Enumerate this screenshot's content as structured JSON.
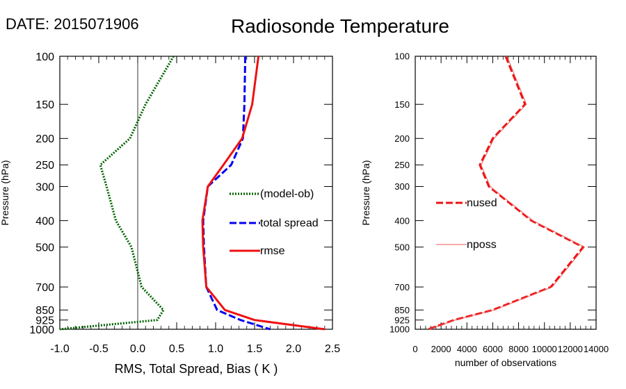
{
  "header": {
    "date_label": "DATE: 2015071906",
    "title": "Radiosonde Temperature"
  },
  "chart_data": [
    {
      "type": "line",
      "ylabel": "Pressure (hPa)",
      "xlabel": "RMS, Total Spread, Bias ( K )",
      "y_scale": "log",
      "y_reversed": true,
      "ylim": [
        1000,
        100
      ],
      "xlim": [
        -1.0,
        2.5
      ],
      "x_ticks": [
        "-1.0",
        "-0.5",
        "0.0",
        "0.5",
        "1.0",
        "1.5",
        "2.0",
        "2.5"
      ],
      "y_ticks": [
        "100",
        "150",
        "200",
        "250",
        "300",
        "400",
        "500",
        "700",
        "850",
        "925",
        "1000"
      ],
      "legend_position": "right-middle",
      "series": [
        {
          "name": "(model-ob)",
          "color": "#006400",
          "style": "dotted",
          "x": [
            0.46,
            0.1,
            -0.1,
            -0.48,
            -0.4,
            -0.28,
            -0.08,
            0.05,
            0.33,
            0.25,
            -1.0
          ],
          "y": [
            100,
            150,
            200,
            250,
            300,
            400,
            500,
            700,
            850,
            925,
            1000
          ]
        },
        {
          "name": "total spread",
          "color": "#0000ee",
          "style": "dashed",
          "x": [
            1.38,
            1.37,
            1.35,
            1.2,
            0.9,
            0.84,
            0.85,
            0.88,
            1.02,
            1.32,
            1.7
          ],
          "y": [
            100,
            150,
            200,
            250,
            300,
            400,
            500,
            700,
            850,
            925,
            1000
          ]
        },
        {
          "name": "rmse",
          "color": "#ee1111",
          "style": "solid",
          "x": [
            1.55,
            1.47,
            1.34,
            1.1,
            0.9,
            0.83,
            0.84,
            0.88,
            1.12,
            1.5,
            2.4
          ],
          "y": [
            100,
            150,
            200,
            250,
            300,
            400,
            500,
            700,
            850,
            925,
            1000
          ]
        }
      ]
    },
    {
      "type": "line",
      "ylabel": "Pressure (hPa)",
      "xlabel": "number of observations",
      "y_scale": "log",
      "y_reversed": true,
      "ylim": [
        1000,
        100
      ],
      "xlim": [
        0,
        14000
      ],
      "x_ticks": [
        "0",
        "2000",
        "4000",
        "6000",
        "8000",
        "10000",
        "12000",
        "14000"
      ],
      "y_ticks": [
        "100",
        "150",
        "200",
        "250",
        "300",
        "400",
        "500",
        "700",
        "850",
        "925",
        "1000"
      ],
      "legend_position": "left-middle",
      "series": [
        {
          "name": "nused",
          "color": "#ee1111",
          "style": "dashed",
          "x": [
            7000,
            8500,
            6000,
            5000,
            5700,
            9000,
            13000,
            10500,
            6000,
            3000,
            1000
          ],
          "y": [
            100,
            150,
            200,
            250,
            300,
            400,
            500,
            700,
            850,
            925,
            1000
          ]
        },
        {
          "name": "nposs",
          "color": "#ee5555",
          "style": "solid-thin",
          "x": [
            7100,
            8600,
            6100,
            5100,
            5800,
            9100,
            13100,
            10600,
            6100,
            3100,
            1100
          ],
          "y": [
            100,
            150,
            200,
            250,
            300,
            400,
            500,
            700,
            850,
            925,
            1000
          ]
        }
      ]
    }
  ]
}
